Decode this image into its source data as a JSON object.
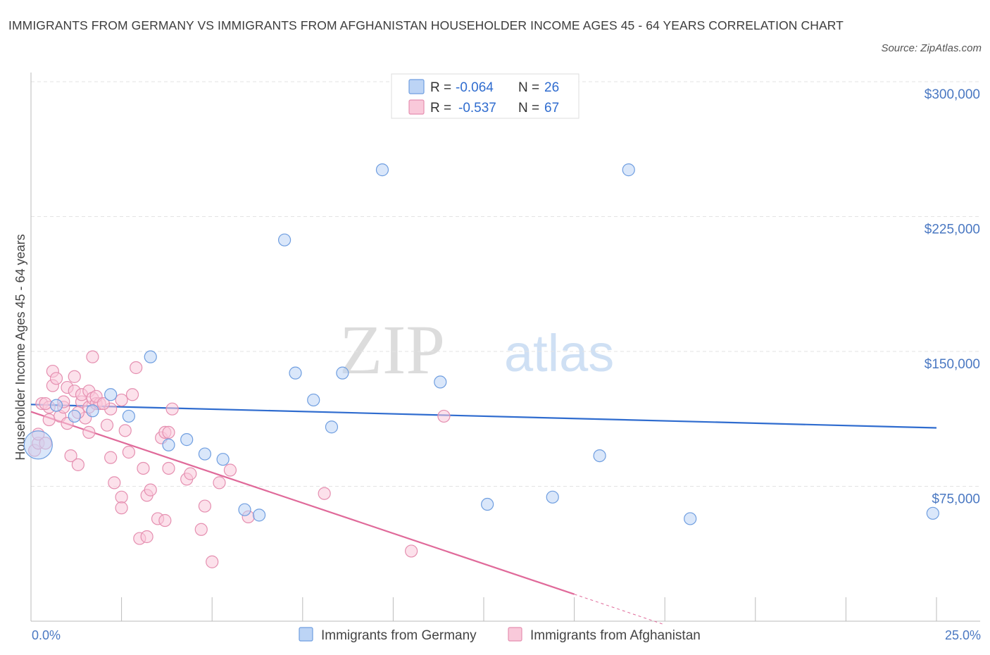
{
  "title": "IMMIGRANTS FROM GERMANY VS IMMIGRANTS FROM AFGHANISTAN HOUSEHOLDER INCOME AGES 45 - 64 YEARS CORRELATION CHART",
  "source": "Source: ZipAtlas.com",
  "watermark": {
    "zip": "ZIP",
    "atlas": "atlas"
  },
  "legend": {
    "r_label": "R =",
    "n_label": "N =",
    "rows": [
      {
        "r": "-0.064",
        "n": "26",
        "fill": "#bcd4f5",
        "stroke": "#6f9ee0"
      },
      {
        "r": "-0.537",
        "n": "67",
        "fill": "#f9c9da",
        "stroke": "#e58fb0"
      }
    ]
  },
  "chart_data": {
    "type": "scatter",
    "title": "IMMIGRANTS FROM GERMANY VS IMMIGRANTS FROM AFGHANISTAN HOUSEHOLDER INCOME AGES 45 - 64 YEARS CORRELATION CHART",
    "xlabel": "",
    "ylabel": "Householder Income Ages 45 - 64 years",
    "xlim": [
      0,
      25
    ],
    "ylim": [
      0,
      300000
    ],
    "x_tick_labels": [
      "0.0%",
      "25.0%"
    ],
    "y_tick_labels": [
      "$75,000",
      "$150,000",
      "$225,000",
      "$300,000"
    ],
    "y_ticks": [
      75000,
      150000,
      225000,
      300000
    ],
    "grid": true,
    "legend_position": "top-center",
    "series": [
      {
        "name": "Immigrants from Germany",
        "color": "#6f9ee0",
        "fill": "#bcd4f5",
        "line_color": "#2f6ccf",
        "trend": {
          "x": [
            0,
            25
          ],
          "y": [
            120500,
            107500
          ]
        },
        "points": [
          {
            "x": 0.2,
            "y": 98000,
            "big": true
          },
          {
            "x": 0.7,
            "y": 120000
          },
          {
            "x": 1.2,
            "y": 114000
          },
          {
            "x": 1.7,
            "y": 117000
          },
          {
            "x": 2.2,
            "y": 126000
          },
          {
            "x": 2.7,
            "y": 114000
          },
          {
            "x": 3.3,
            "y": 147000
          },
          {
            "x": 3.8,
            "y": 98000
          },
          {
            "x": 4.3,
            "y": 101000
          },
          {
            "x": 4.8,
            "y": 93000
          },
          {
            "x": 5.3,
            "y": 90000
          },
          {
            "x": 5.9,
            "y": 62000
          },
          {
            "x": 6.3,
            "y": 59000
          },
          {
            "x": 7.0,
            "y": 212000
          },
          {
            "x": 7.3,
            "y": 138000
          },
          {
            "x": 7.8,
            "y": 123000
          },
          {
            "x": 8.3,
            "y": 108000
          },
          {
            "x": 8.6,
            "y": 138000
          },
          {
            "x": 9.7,
            "y": 251000
          },
          {
            "x": 11.3,
            "y": 133000
          },
          {
            "x": 12.6,
            "y": 65000
          },
          {
            "x": 14.4,
            "y": 69000
          },
          {
            "x": 15.7,
            "y": 92000
          },
          {
            "x": 16.5,
            "y": 251000
          },
          {
            "x": 18.2,
            "y": 57000
          },
          {
            "x": 24.9,
            "y": 60000
          }
        ]
      },
      {
        "name": "Immigrants from Afghanistan",
        "color": "#e58fb0",
        "fill": "#f9c9da",
        "line_color": "#e06a9a",
        "trend": {
          "x": [
            0,
            15
          ],
          "y": [
            116500,
            15000
          ]
        },
        "trend_dashed": {
          "x": [
            15,
            17.5
          ],
          "y": [
            15000,
            -2000
          ]
        },
        "points": [
          {
            "x": 0.1,
            "y": 95000
          },
          {
            "x": 0.2,
            "y": 99000
          },
          {
            "x": 0.2,
            "y": 104000
          },
          {
            "x": 0.3,
            "y": 121000
          },
          {
            "x": 0.4,
            "y": 99000
          },
          {
            "x": 0.5,
            "y": 119000
          },
          {
            "x": 0.5,
            "y": 112000
          },
          {
            "x": 0.6,
            "y": 131000
          },
          {
            "x": 0.6,
            "y": 139000
          },
          {
            "x": 0.7,
            "y": 135000
          },
          {
            "x": 0.8,
            "y": 114000
          },
          {
            "x": 0.9,
            "y": 119000
          },
          {
            "x": 0.9,
            "y": 122000
          },
          {
            "x": 1.0,
            "y": 110000
          },
          {
            "x": 1.0,
            "y": 130000
          },
          {
            "x": 1.1,
            "y": 92000
          },
          {
            "x": 1.2,
            "y": 128000
          },
          {
            "x": 1.2,
            "y": 136000
          },
          {
            "x": 1.3,
            "y": 87000
          },
          {
            "x": 1.4,
            "y": 122000
          },
          {
            "x": 1.4,
            "y": 126000
          },
          {
            "x": 1.5,
            "y": 113000
          },
          {
            "x": 1.6,
            "y": 105000
          },
          {
            "x": 1.6,
            "y": 119000
          },
          {
            "x": 1.6,
            "y": 128000
          },
          {
            "x": 1.7,
            "y": 124000
          },
          {
            "x": 1.7,
            "y": 147000
          },
          {
            "x": 1.8,
            "y": 121000
          },
          {
            "x": 1.9,
            "y": 121000
          },
          {
            "x": 2.1,
            "y": 109000
          },
          {
            "x": 2.2,
            "y": 91000
          },
          {
            "x": 2.2,
            "y": 118000
          },
          {
            "x": 2.3,
            "y": 77000
          },
          {
            "x": 2.5,
            "y": 69000
          },
          {
            "x": 2.5,
            "y": 63000
          },
          {
            "x": 2.5,
            "y": 123000
          },
          {
            "x": 2.6,
            "y": 106000
          },
          {
            "x": 2.7,
            "y": 94000
          },
          {
            "x": 2.8,
            "y": 126000
          },
          {
            "x": 2.9,
            "y": 141000
          },
          {
            "x": 3.0,
            "y": 46000
          },
          {
            "x": 3.1,
            "y": 85000
          },
          {
            "x": 3.2,
            "y": 47000
          },
          {
            "x": 3.2,
            "y": 70000
          },
          {
            "x": 3.3,
            "y": 73000
          },
          {
            "x": 3.5,
            "y": 57000
          },
          {
            "x": 3.6,
            "y": 102000
          },
          {
            "x": 3.7,
            "y": 105000
          },
          {
            "x": 3.7,
            "y": 56000
          },
          {
            "x": 3.8,
            "y": 105000
          },
          {
            "x": 3.8,
            "y": 85000
          },
          {
            "x": 3.9,
            "y": 118000
          },
          {
            "x": 4.3,
            "y": 79000
          },
          {
            "x": 4.4,
            "y": 82000
          },
          {
            "x": 4.7,
            "y": 51000
          },
          {
            "x": 4.8,
            "y": 64000
          },
          {
            "x": 5.0,
            "y": 33000
          },
          {
            "x": 5.2,
            "y": 77000
          },
          {
            "x": 5.5,
            "y": 84000
          },
          {
            "x": 6.0,
            "y": 58000
          },
          {
            "x": 8.1,
            "y": 71000
          },
          {
            "x": 10.5,
            "y": 39000
          },
          {
            "x": 11.4,
            "y": 114000
          },
          {
            "x": 1.3,
            "y": 116000
          },
          {
            "x": 1.8,
            "y": 125000
          },
          {
            "x": 2.0,
            "y": 121000
          },
          {
            "x": 0.4,
            "y": 121000
          }
        ]
      }
    ]
  }
}
